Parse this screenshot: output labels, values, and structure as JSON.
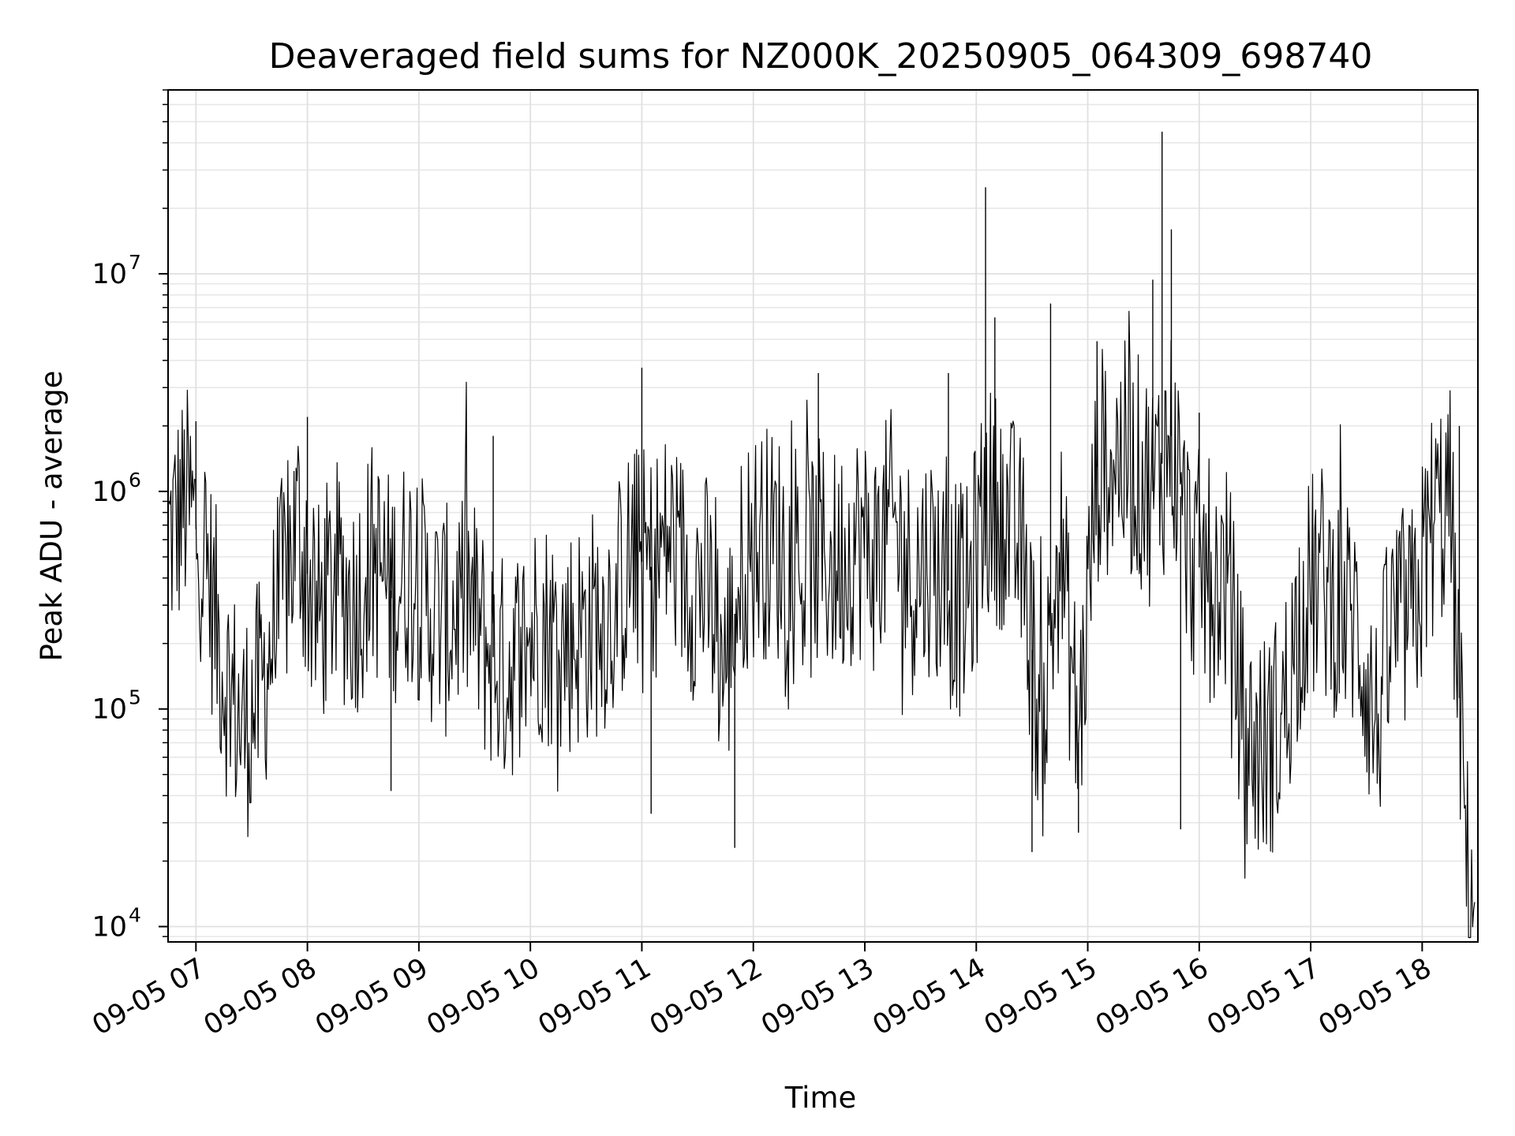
{
  "chart_data": {
    "type": "line",
    "title": "Deaveraged field sums for NZ000K_20250905_064309_698740",
    "xlabel": "Time",
    "ylabel": "Peak ADU - average",
    "yscale": "log",
    "xlim": [
      "09-05 06:45",
      "09-05 18:30"
    ],
    "ylim": [
      8500,
      70000000
    ],
    "grid": true,
    "line_color": "#000000",
    "x_ticks": [
      "09-05 07",
      "09-05 08",
      "09-05 09",
      "09-05 10",
      "09-05 11",
      "09-05 12",
      "09-05 13",
      "09-05 14",
      "09-05 15",
      "09-05 16",
      "09-05 17",
      "09-05 18"
    ],
    "y_ticks": [
      {
        "value": 10000,
        "base": "10",
        "exp": "4"
      },
      {
        "value": 100000,
        "base": "10",
        "exp": "5"
      },
      {
        "value": 1000000,
        "base": "10",
        "exp": "6"
      },
      {
        "value": 10000000,
        "base": "10",
        "exp": "7"
      }
    ],
    "series": [
      {
        "x": [
          "09-05 06:45",
          "09-05 06:55",
          "09-05 07:05",
          "09-05 07:15",
          "09-05 07:25",
          "09-05 07:35",
          "09-05 07:45",
          "09-05 07:55",
          "09-05 08:05",
          "09-05 08:15",
          "09-05 08:25",
          "09-05 08:35",
          "09-05 08:45",
          "09-05 08:55",
          "09-05 09:05",
          "09-05 09:15",
          "09-05 09:25",
          "09-05 09:35",
          "09-05 09:45",
          "09-05 09:55",
          "09-05 10:05",
          "09-05 10:15",
          "09-05 10:25",
          "09-05 10:35",
          "09-05 10:45",
          "09-05 10:55",
          "09-05 11:05",
          "09-05 11:15",
          "09-05 11:25",
          "09-05 11:35",
          "09-05 11:45",
          "09-05 11:55",
          "09-05 12:05",
          "09-05 12:15",
          "09-05 12:25",
          "09-05 12:35",
          "09-05 12:45",
          "09-05 12:55",
          "09-05 13:05",
          "09-05 13:15",
          "09-05 13:25",
          "09-05 13:35",
          "09-05 13:45",
          "09-05 13:55",
          "09-05 14:05",
          "09-05 14:15",
          "09-05 14:25",
          "09-05 14:35",
          "09-05 14:45",
          "09-05 14:55",
          "09-05 15:05",
          "09-05 15:15",
          "09-05 15:25",
          "09-05 15:35",
          "09-05 15:45",
          "09-05 15:55",
          "09-05 16:05",
          "09-05 16:15",
          "09-05 16:25",
          "09-05 16:35",
          "09-05 16:45",
          "09-05 16:55",
          "09-05 17:05",
          "09-05 17:15",
          "09-05 17:25",
          "09-05 17:35",
          "09-05 17:45",
          "09-05 17:55",
          "09-05 18:05",
          "09-05 18:15",
          "09-05 18:25"
        ],
        "y": [
          600000,
          900000,
          500000,
          150000,
          80000,
          120000,
          300000,
          700000,
          250000,
          400000,
          300000,
          500000,
          350000,
          450000,
          300000,
          250000,
          350000,
          200000,
          150000,
          180000,
          250000,
          200000,
          220000,
          250000,
          300000,
          500000,
          450000,
          600000,
          400000,
          350000,
          150000,
          500000,
          600000,
          550000,
          400000,
          500000,
          450000,
          600000,
          500000,
          700000,
          400000,
          500000,
          350000,
          300000,
          900000,
          800000,
          500000,
          70000,
          600000,
          70000,
          1300000,
          1500000,
          1300000,
          1000000,
          1800000,
          500000,
          400000,
          400000,
          70000,
          65000,
          90000,
          300000,
          400000,
          300000,
          250000,
          80000,
          250000,
          250000,
          700000,
          900000,
          14000
        ]
      }
    ],
    "spikes": [
      {
        "x": "09-05 07:00",
        "y": 2100000
      },
      {
        "x": "09-05 08:00",
        "y": 2200000
      },
      {
        "x": "09-05 08:45",
        "y": 42000
      },
      {
        "x": "09-05 09:40",
        "y": 1800000
      },
      {
        "x": "09-05 11:00",
        "y": 3700000
      },
      {
        "x": "09-05 11:05",
        "y": 33000
      },
      {
        "x": "09-05 11:50",
        "y": 23000
      },
      {
        "x": "09-05 12:35",
        "y": 3500000
      },
      {
        "x": "09-05 13:45",
        "y": 3500000
      },
      {
        "x": "09-05 14:05",
        "y": 25000000
      },
      {
        "x": "09-05 14:10",
        "y": 6300000
      },
      {
        "x": "09-05 14:30",
        "y": 22000
      },
      {
        "x": "09-05 14:40",
        "y": 7300000
      },
      {
        "x": "09-05 14:55",
        "y": 27000
      },
      {
        "x": "09-05 15:05",
        "y": 4900000
      },
      {
        "x": "09-05 15:35",
        "y": 9400000
      },
      {
        "x": "09-05 15:40",
        "y": 45000000
      },
      {
        "x": "09-05 15:45",
        "y": 16000000
      },
      {
        "x": "09-05 15:50",
        "y": 28000
      },
      {
        "x": "09-05 16:00",
        "y": 2300000
      },
      {
        "x": "09-05 18:20",
        "y": 2000000
      }
    ]
  }
}
